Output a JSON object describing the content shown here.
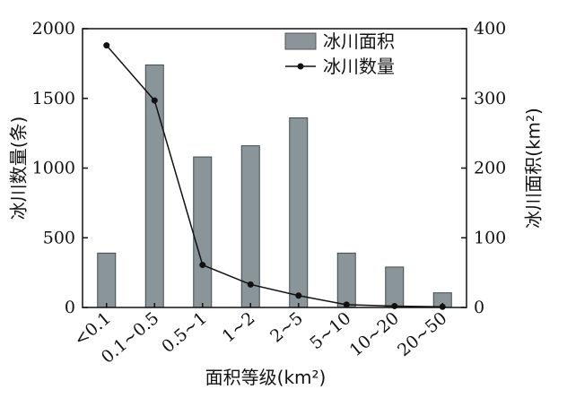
{
  "chart_data": {
    "type": "bar+line",
    "categories": [
      "<0.1",
      "0.1~0.5",
      "0.5~1",
      "1~2",
      "2~5",
      "5~10",
      "10~20",
      "20~50"
    ],
    "series": [
      {
        "name": "冰川面积",
        "type": "bar",
        "axis": "right",
        "color": "#8a9599",
        "values": [
          78,
          348,
          216,
          232,
          272,
          78,
          58,
          21
        ]
      },
      {
        "name": "冰川数量",
        "type": "line",
        "axis": "left",
        "color": "#111111",
        "values": [
          1880,
          1485,
          305,
          165,
          85,
          20,
          10,
          5
        ]
      }
    ],
    "xlabel": "面积等级(km²)",
    "ylabel_left": "冰川数量(条)",
    "ylabel_right": "冰川面积(km²)",
    "ylim_left": [
      0,
      2000
    ],
    "ylim_right": [
      0,
      400
    ],
    "yticks_left": [
      "0",
      "500",
      "1000",
      "1500",
      "2000"
    ],
    "yticks_right": [
      "0",
      "100",
      "200",
      "300",
      "400"
    ],
    "legend_position": "top-right",
    "grid": false
  }
}
